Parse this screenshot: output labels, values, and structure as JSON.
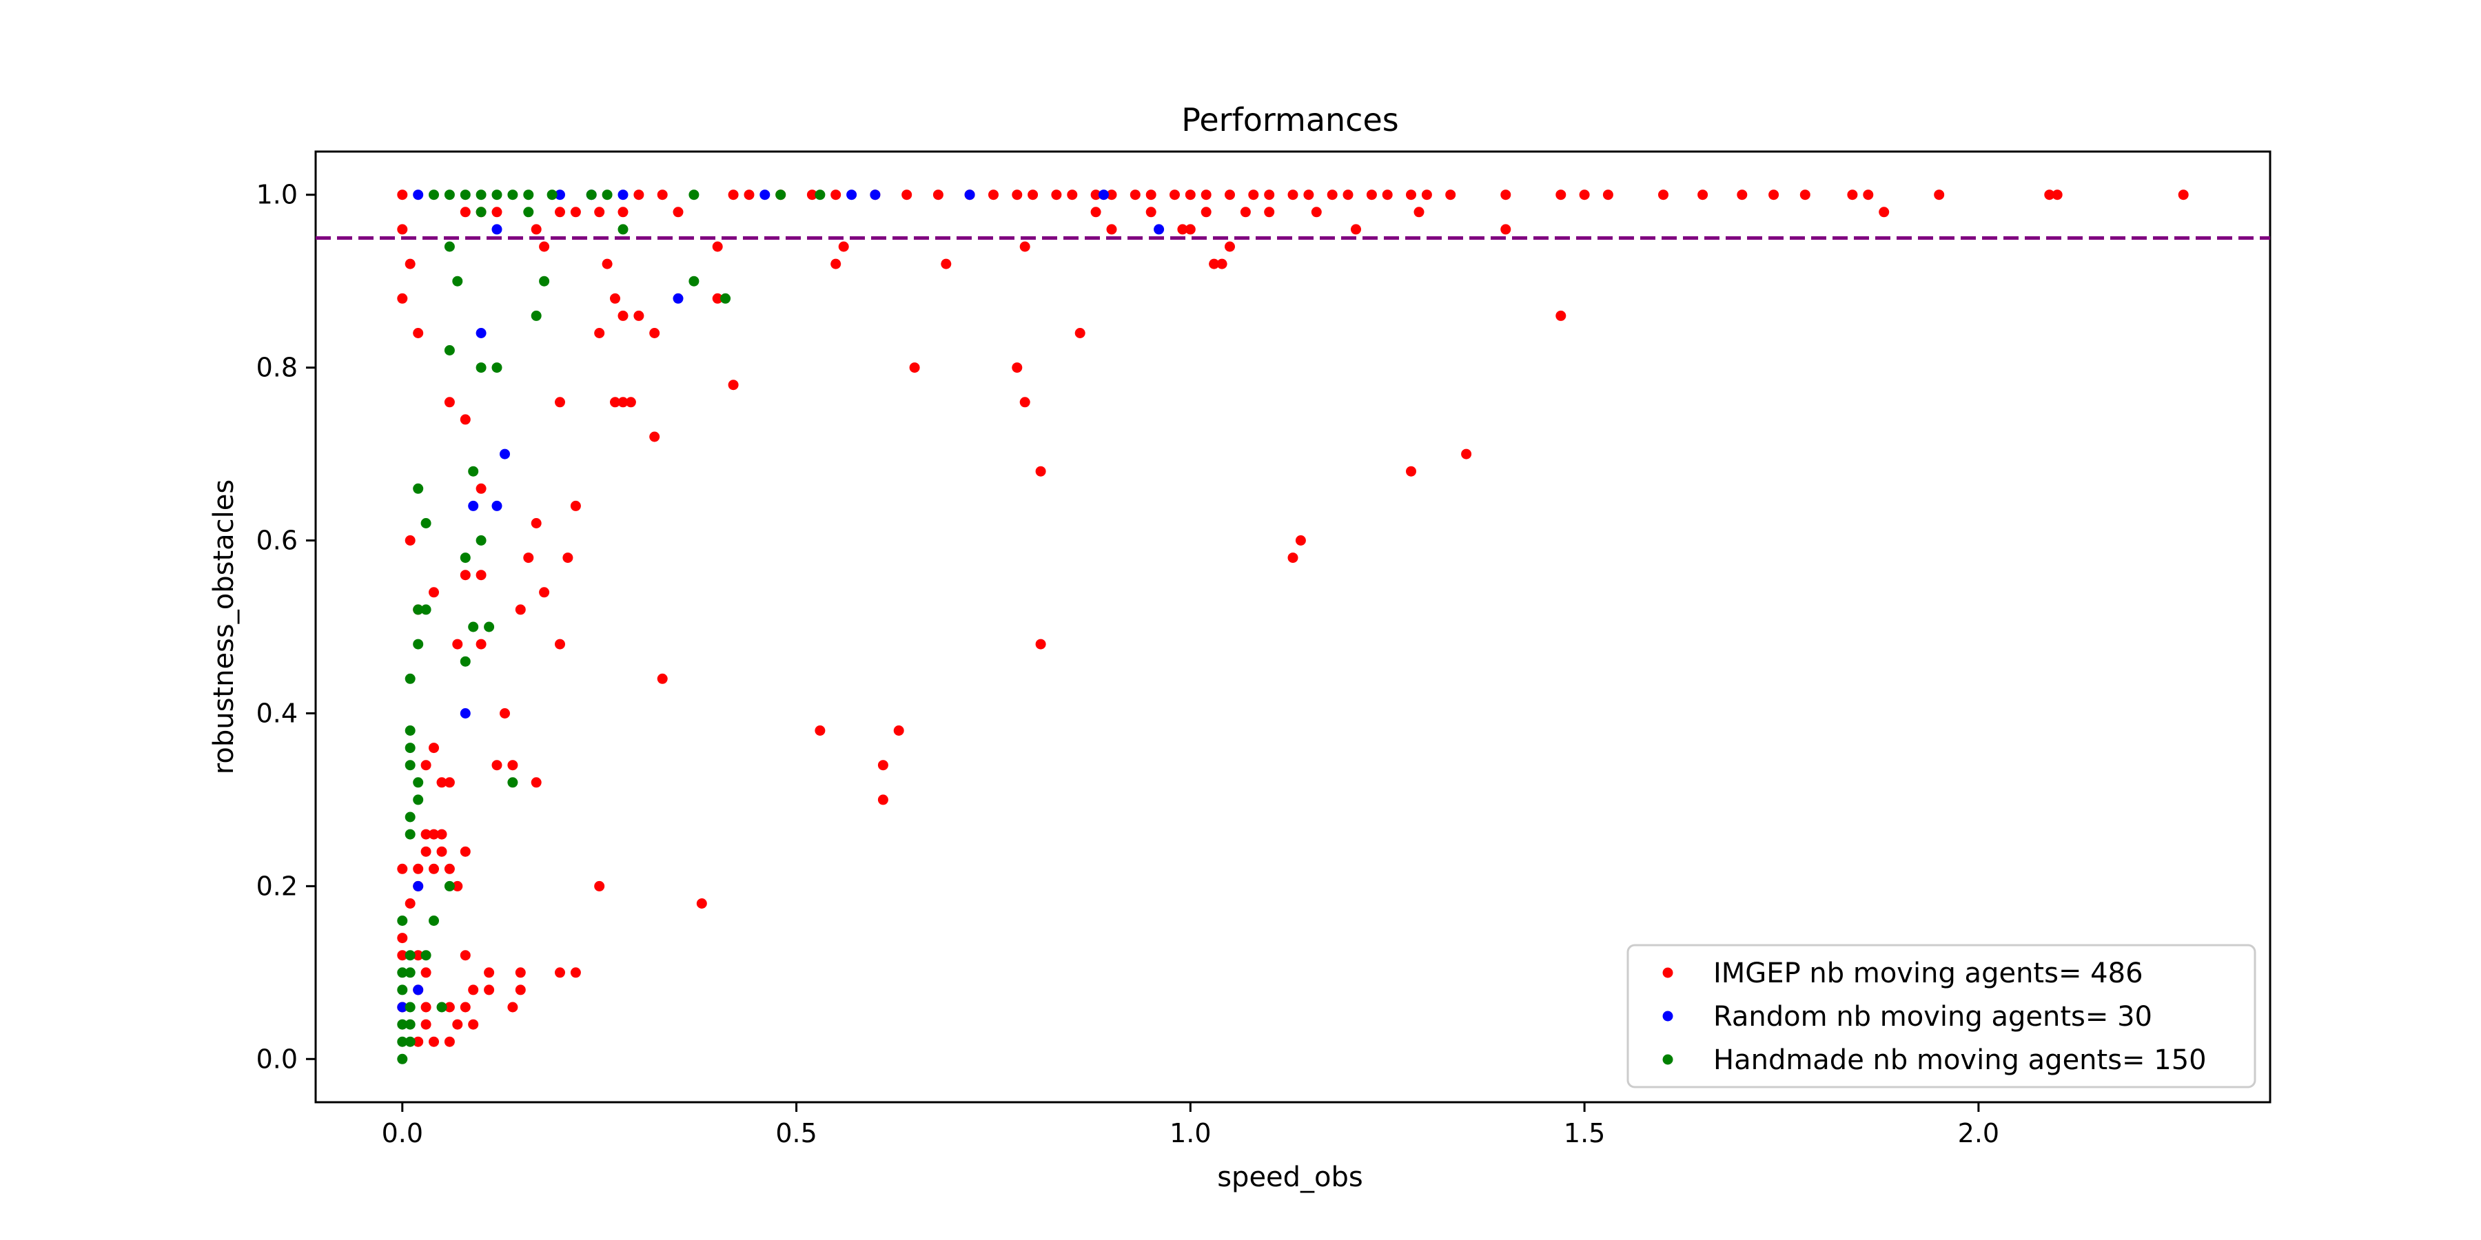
{
  "chart_data": {
    "type": "scatter",
    "title": "Performances",
    "xlabel": "speed_obs",
    "ylabel": "robustness_obstacles",
    "xlim": [
      -0.11,
      2.37
    ],
    "ylim": [
      -0.05,
      1.05
    ],
    "xticks": [
      0.0,
      0.5,
      1.0,
      1.5,
      2.0
    ],
    "xtick_labels": [
      "0.0",
      "0.5",
      "1.0",
      "1.5",
      "2.0"
    ],
    "yticks": [
      0.0,
      0.2,
      0.4,
      0.6,
      0.8,
      1.0
    ],
    "ytick_labels": [
      "0.0",
      "0.2",
      "0.4",
      "0.6",
      "0.8",
      "1.0"
    ],
    "grid": false,
    "threshold_line": {
      "y": 0.95,
      "color": "#800080",
      "style": "dashed"
    },
    "legend_position": "lower-right",
    "series": [
      {
        "name": "IMGEP nb moving agents= 486",
        "color": "#ff0000",
        "points": [
          [
            0.0,
            1.0
          ],
          [
            0.0,
            0.96
          ],
          [
            0.01,
            0.92
          ],
          [
            0.0,
            0.88
          ],
          [
            0.02,
            0.84
          ],
          [
            0.08,
            0.98
          ],
          [
            0.1,
            0.98
          ],
          [
            0.12,
            0.98
          ],
          [
            0.17,
            0.96
          ],
          [
            0.18,
            0.94
          ],
          [
            0.2,
            0.98
          ],
          [
            0.22,
            0.98
          ],
          [
            0.25,
            0.98
          ],
          [
            0.28,
            0.98
          ],
          [
            0.3,
            1.0
          ],
          [
            0.33,
            1.0
          ],
          [
            0.35,
            0.98
          ],
          [
            0.26,
            0.92
          ],
          [
            0.27,
            0.88
          ],
          [
            0.28,
            0.86
          ],
          [
            0.3,
            0.86
          ],
          [
            0.32,
            0.84
          ],
          [
            0.25,
            0.84
          ],
          [
            0.4,
            0.94
          ],
          [
            0.4,
            0.88
          ],
          [
            0.42,
            0.78
          ],
          [
            0.2,
            0.76
          ],
          [
            0.27,
            0.76
          ],
          [
            0.28,
            0.76
          ],
          [
            0.29,
            0.76
          ],
          [
            0.32,
            0.72
          ],
          [
            0.06,
            0.76
          ],
          [
            0.08,
            0.74
          ],
          [
            0.1,
            0.66
          ],
          [
            0.17,
            0.62
          ],
          [
            0.22,
            0.64
          ],
          [
            0.01,
            0.6
          ],
          [
            0.16,
            0.58
          ],
          [
            0.21,
            0.58
          ],
          [
            0.08,
            0.56
          ],
          [
            0.1,
            0.56
          ],
          [
            0.18,
            0.54
          ],
          [
            0.15,
            0.52
          ],
          [
            0.02,
            0.52
          ],
          [
            0.04,
            0.54
          ],
          [
            0.07,
            0.48
          ],
          [
            0.1,
            0.48
          ],
          [
            0.2,
            0.48
          ],
          [
            0.13,
            0.4
          ],
          [
            0.33,
            0.44
          ],
          [
            0.04,
            0.36
          ],
          [
            0.03,
            0.34
          ],
          [
            0.05,
            0.32
          ],
          [
            0.06,
            0.32
          ],
          [
            0.12,
            0.34
          ],
          [
            0.14,
            0.34
          ],
          [
            0.17,
            0.32
          ],
          [
            0.03,
            0.26
          ],
          [
            0.04,
            0.26
          ],
          [
            0.05,
            0.26
          ],
          [
            0.03,
            0.24
          ],
          [
            0.05,
            0.24
          ],
          [
            0.08,
            0.24
          ],
          [
            0.0,
            0.22
          ],
          [
            0.02,
            0.22
          ],
          [
            0.04,
            0.22
          ],
          [
            0.06,
            0.22
          ],
          [
            0.02,
            0.2
          ],
          [
            0.07,
            0.2
          ],
          [
            0.01,
            0.18
          ],
          [
            0.25,
            0.2
          ],
          [
            0.38,
            0.18
          ],
          [
            0.0,
            0.14
          ],
          [
            0.0,
            0.12
          ],
          [
            0.02,
            0.12
          ],
          [
            0.08,
            0.12
          ],
          [
            0.03,
            0.1
          ],
          [
            0.11,
            0.1
          ],
          [
            0.15,
            0.1
          ],
          [
            0.2,
            0.1
          ],
          [
            0.22,
            0.1
          ],
          [
            0.02,
            0.08
          ],
          [
            0.09,
            0.08
          ],
          [
            0.11,
            0.08
          ],
          [
            0.15,
            0.08
          ],
          [
            0.0,
            0.06
          ],
          [
            0.03,
            0.06
          ],
          [
            0.06,
            0.06
          ],
          [
            0.08,
            0.06
          ],
          [
            0.14,
            0.06
          ],
          [
            0.03,
            0.04
          ],
          [
            0.07,
            0.04
          ],
          [
            0.09,
            0.04
          ],
          [
            0.02,
            0.02
          ],
          [
            0.04,
            0.02
          ],
          [
            0.06,
            0.02
          ],
          [
            0.53,
            0.38
          ],
          [
            0.61,
            0.34
          ],
          [
            0.61,
            0.3
          ],
          [
            0.63,
            0.38
          ],
          [
            0.55,
            0.92
          ],
          [
            0.56,
            0.94
          ],
          [
            0.65,
            0.8
          ],
          [
            0.69,
            0.92
          ],
          [
            0.78,
            0.8
          ],
          [
            0.79,
            0.76
          ],
          [
            0.79,
            0.94
          ],
          [
            0.81,
            0.68
          ],
          [
            0.81,
            0.48
          ],
          [
            0.86,
            0.84
          ],
          [
            0.88,
            0.98
          ],
          [
            0.9,
            0.96
          ],
          [
            0.95,
            0.98
          ],
          [
            0.99,
            0.96
          ],
          [
            1.0,
            0.96
          ],
          [
            1.02,
            0.98
          ],
          [
            1.03,
            0.92
          ],
          [
            1.04,
            0.92
          ],
          [
            1.05,
            0.94
          ],
          [
            1.07,
            0.98
          ],
          [
            1.1,
            0.98
          ],
          [
            1.16,
            0.98
          ],
          [
            1.21,
            0.96
          ],
          [
            1.29,
            0.98
          ],
          [
            1.4,
            0.96
          ],
          [
            1.47,
            0.86
          ],
          [
            1.13,
            0.58
          ],
          [
            1.14,
            0.6
          ],
          [
            1.28,
            0.68
          ],
          [
            1.35,
            0.7
          ],
          [
            1.88,
            0.98
          ],
          [
            0.42,
            1.0
          ],
          [
            0.44,
            1.0
          ],
          [
            0.48,
            1.0
          ],
          [
            0.52,
            1.0
          ],
          [
            0.55,
            1.0
          ],
          [
            0.6,
            1.0
          ],
          [
            0.64,
            1.0
          ],
          [
            0.68,
            1.0
          ],
          [
            0.72,
            1.0
          ],
          [
            0.75,
            1.0
          ],
          [
            0.78,
            1.0
          ],
          [
            0.8,
            1.0
          ],
          [
            0.83,
            1.0
          ],
          [
            0.85,
            1.0
          ],
          [
            0.88,
            1.0
          ],
          [
            0.9,
            1.0
          ],
          [
            0.93,
            1.0
          ],
          [
            0.95,
            1.0
          ],
          [
            0.98,
            1.0
          ],
          [
            1.0,
            1.0
          ],
          [
            1.02,
            1.0
          ],
          [
            1.05,
            1.0
          ],
          [
            1.08,
            1.0
          ],
          [
            1.1,
            1.0
          ],
          [
            1.13,
            1.0
          ],
          [
            1.15,
            1.0
          ],
          [
            1.18,
            1.0
          ],
          [
            1.2,
            1.0
          ],
          [
            1.23,
            1.0
          ],
          [
            1.25,
            1.0
          ],
          [
            1.28,
            1.0
          ],
          [
            1.3,
            1.0
          ],
          [
            1.33,
            1.0
          ],
          [
            1.4,
            1.0
          ],
          [
            1.47,
            1.0
          ],
          [
            1.5,
            1.0
          ],
          [
            1.53,
            1.0
          ],
          [
            1.6,
            1.0
          ],
          [
            1.65,
            1.0
          ],
          [
            1.7,
            1.0
          ],
          [
            1.74,
            1.0
          ],
          [
            1.78,
            1.0
          ],
          [
            1.84,
            1.0
          ],
          [
            1.86,
            1.0
          ],
          [
            1.95,
            1.0
          ],
          [
            2.09,
            1.0
          ],
          [
            2.1,
            1.0
          ],
          [
            2.26,
            1.0
          ]
        ]
      },
      {
        "name": "Random nb moving agents= 30",
        "color": "#0000ff",
        "points": [
          [
            0.02,
            1.0
          ],
          [
            0.2,
            1.0
          ],
          [
            0.24,
            1.0
          ],
          [
            0.28,
            1.0
          ],
          [
            0.46,
            1.0
          ],
          [
            0.57,
            1.0
          ],
          [
            0.6,
            1.0
          ],
          [
            0.72,
            1.0
          ],
          [
            0.89,
            1.0
          ],
          [
            0.12,
            0.96
          ],
          [
            0.96,
            0.96
          ],
          [
            0.35,
            0.88
          ],
          [
            0.1,
            0.84
          ],
          [
            0.13,
            0.7
          ],
          [
            0.09,
            0.64
          ],
          [
            0.12,
            0.64
          ],
          [
            0.08,
            0.4
          ],
          [
            0.02,
            0.2
          ],
          [
            0.02,
            0.08
          ],
          [
            0.0,
            0.06
          ]
        ]
      },
      {
        "name": "Handmade nb moving agents= 150",
        "color": "#008000",
        "points": [
          [
            0.04,
            1.0
          ],
          [
            0.06,
            1.0
          ],
          [
            0.08,
            1.0
          ],
          [
            0.1,
            1.0
          ],
          [
            0.12,
            1.0
          ],
          [
            0.14,
            1.0
          ],
          [
            0.16,
            1.0
          ],
          [
            0.19,
            1.0
          ],
          [
            0.24,
            1.0
          ],
          [
            0.26,
            1.0
          ],
          [
            0.37,
            1.0
          ],
          [
            0.48,
            1.0
          ],
          [
            0.53,
            1.0
          ],
          [
            0.1,
            0.98
          ],
          [
            0.16,
            0.98
          ],
          [
            0.28,
            0.96
          ],
          [
            0.06,
            0.94
          ],
          [
            0.07,
            0.9
          ],
          [
            0.18,
            0.9
          ],
          [
            0.37,
            0.9
          ],
          [
            0.41,
            0.88
          ],
          [
            0.17,
            0.86
          ],
          [
            0.06,
            0.82
          ],
          [
            0.1,
            0.8
          ],
          [
            0.12,
            0.8
          ],
          [
            0.02,
            0.66
          ],
          [
            0.09,
            0.68
          ],
          [
            0.03,
            0.62
          ],
          [
            0.1,
            0.6
          ],
          [
            0.08,
            0.58
          ],
          [
            0.02,
            0.52
          ],
          [
            0.03,
            0.52
          ],
          [
            0.02,
            0.48
          ],
          [
            0.09,
            0.5
          ],
          [
            0.11,
            0.5
          ],
          [
            0.08,
            0.46
          ],
          [
            0.01,
            0.44
          ],
          [
            0.01,
            0.38
          ],
          [
            0.01,
            0.36
          ],
          [
            0.01,
            0.34
          ],
          [
            0.02,
            0.32
          ],
          [
            0.02,
            0.3
          ],
          [
            0.01,
            0.28
          ],
          [
            0.01,
            0.26
          ],
          [
            0.14,
            0.32
          ],
          [
            0.06,
            0.2
          ],
          [
            0.04,
            0.16
          ],
          [
            0.0,
            0.16
          ],
          [
            0.01,
            0.12
          ],
          [
            0.0,
            0.1
          ],
          [
            0.01,
            0.1
          ],
          [
            0.0,
            0.08
          ],
          [
            0.01,
            0.06
          ],
          [
            0.0,
            0.04
          ],
          [
            0.01,
            0.04
          ],
          [
            0.0,
            0.02
          ],
          [
            0.01,
            0.02
          ],
          [
            0.0,
            0.0
          ],
          [
            0.05,
            0.06
          ],
          [
            0.03,
            0.12
          ]
        ]
      }
    ]
  }
}
